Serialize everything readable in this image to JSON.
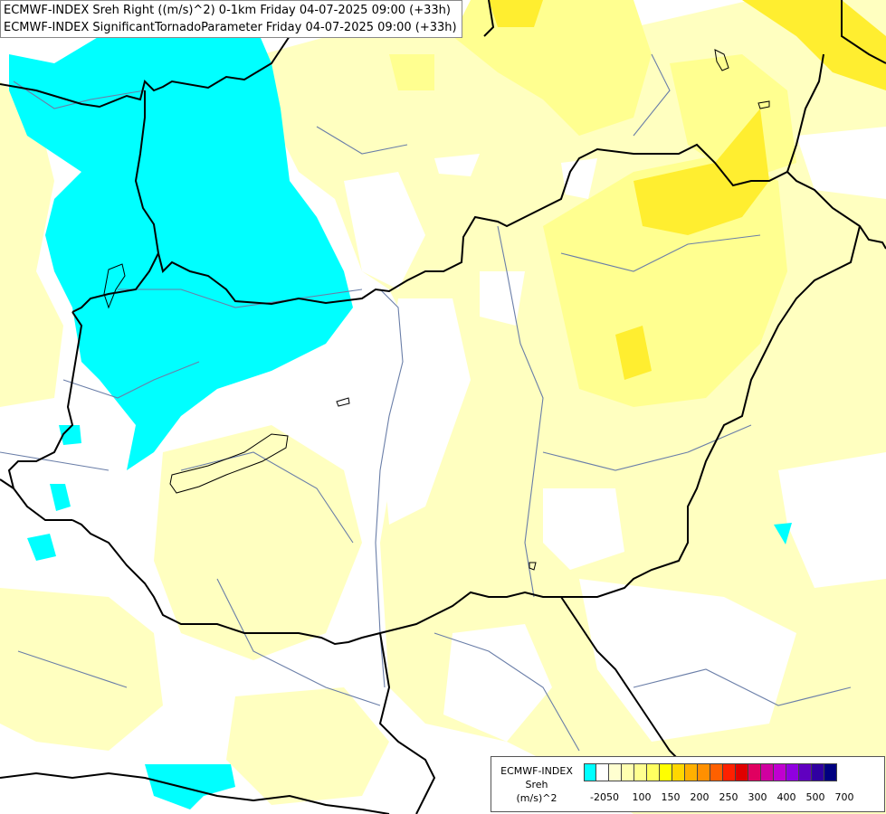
{
  "title": {
    "line1": "ECMWF-INDEX Sreh Right ((m/s)^2) 0-1km Friday 04-07-2025 09:00 (+33h)",
    "line2": "ECMWF-INDEX SignificantTornadoParameter Friday 04-07-2025 09:00 (+33h)"
  },
  "legend": {
    "source": "ECMWF-INDEX",
    "variable": "Sreh",
    "unit": "(m/s)^2",
    "colors": [
      "#00ffff",
      "#ffffff",
      "#ffffd0",
      "#ffffb0",
      "#ffff90",
      "#ffff60",
      "#ffff00",
      "#ffd700",
      "#ffb000",
      "#ff9000",
      "#ff6000",
      "#ff2000",
      "#e00000",
      "#e00060",
      "#d000a0",
      "#c000d0",
      "#9000e0",
      "#6000c0",
      "#3000a0",
      "#000080"
    ],
    "ticks": [
      "-20",
      "50",
      "100",
      "150",
      "200",
      "250",
      "300",
      "400",
      "500",
      "700"
    ]
  },
  "colors": {
    "cyan": "#00ffff",
    "light_yellow": "#ffffc0",
    "yellow": "#ffff80",
    "strong_yellow": "#fff000",
    "border": "#000000",
    "river": "#6a7ea8"
  }
}
